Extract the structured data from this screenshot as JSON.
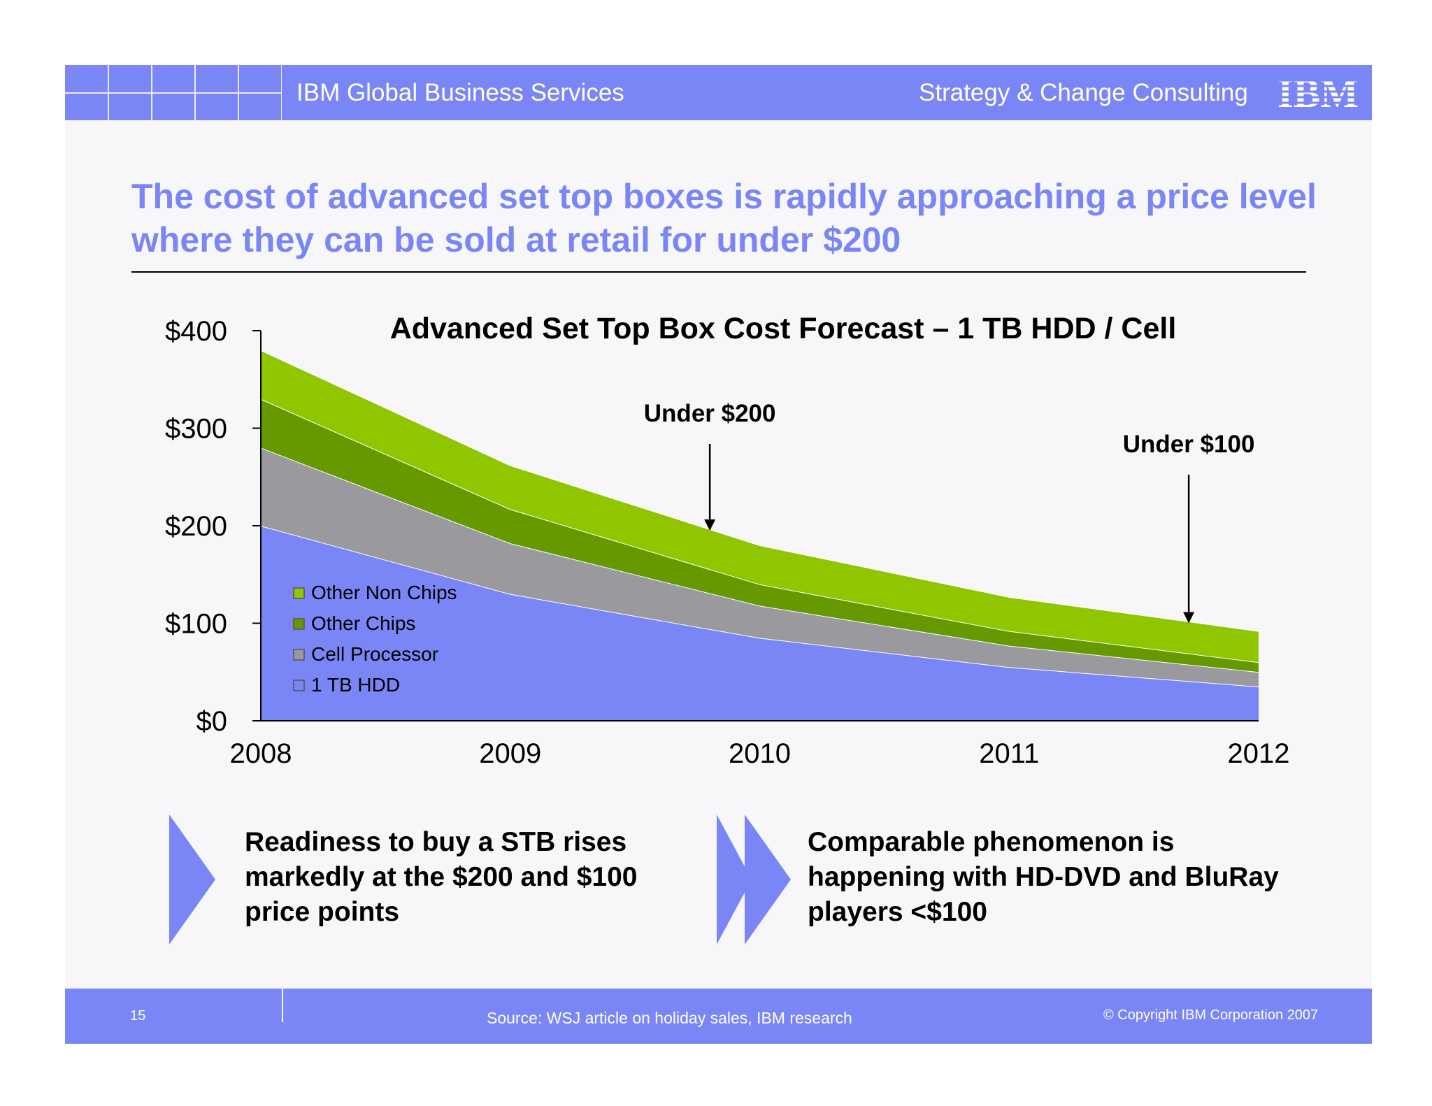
{
  "header": {
    "left_label": "IBM Global Business Services",
    "right_label": "Strategy & Change Consulting",
    "logo_text": "IBM"
  },
  "title": "The cost of advanced set top boxes is rapidly approaching a price level where they can be sold at retail for under $200",
  "chart_data": {
    "type": "area",
    "stacked": true,
    "title": "Advanced Set Top Box Cost Forecast – 1 TB HDD / Cell",
    "x": [
      "2008",
      "2009",
      "2010",
      "2011",
      "2012"
    ],
    "series": [
      {
        "name": "1 TB HDD",
        "values": [
          200,
          130,
          85,
          55,
          35
        ],
        "color": "#7b86f6"
      },
      {
        "name": "Cell Processor",
        "values": [
          80,
          52,
          33,
          22,
          15
        ],
        "color": "#9a999e"
      },
      {
        "name": "Other Chips",
        "values": [
          50,
          35,
          22,
          15,
          10
        ],
        "color": "#669900"
      },
      {
        "name": "Other Non Chips",
        "values": [
          50,
          45,
          40,
          35,
          32
        ],
        "color": "#8fc600"
      }
    ],
    "ylim": [
      0,
      400
    ],
    "yticks": [
      "$0",
      "$100",
      "$200",
      "$300",
      "$400"
    ],
    "ytick_values": [
      0,
      100,
      200,
      300,
      400
    ],
    "annotations": [
      {
        "text": "Under $200",
        "x": 2009.8,
        "y": 195
      },
      {
        "text": "Under $100",
        "x": 2011.72,
        "y": 100
      }
    ],
    "legend_position": "left"
  },
  "bullets": [
    "Readiness to buy a STB rises markedly at the $200 and $100 price points",
    "Comparable phenomenon is happening with HD-DVD and BluRay players <$100"
  ],
  "footer": {
    "page_number": "15",
    "source": "Source: WSJ article on holiday sales, IBM research",
    "copyright": "© Copyright IBM Corporation 2007"
  }
}
